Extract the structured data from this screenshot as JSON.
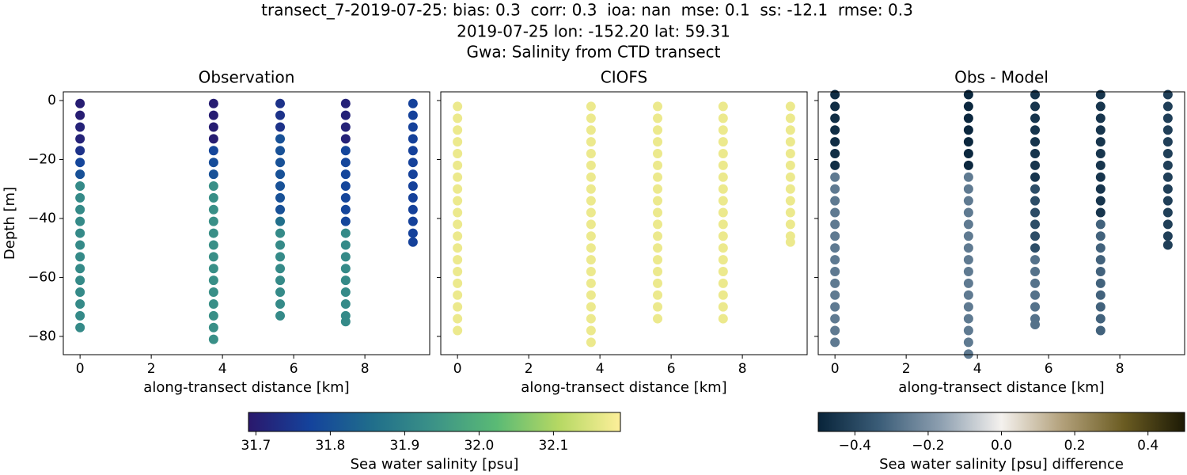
{
  "suptitle": [
    "transect_7-2019-07-25: bias: 0.3  corr: 0.3  ioa: nan  mse: 0.1  ss: -12.1  rmse: 0.3",
    "2019-07-25 lon: -152.20 lat: 59.31",
    "Gwa: Salinity from CTD transect"
  ],
  "chart_data": [
    {
      "type": "scatter",
      "title": "Observation",
      "xlabel": "along-transect distance [km]",
      "ylabel": "Depth [m]",
      "xlim": [
        -0.47,
        9.82
      ],
      "ylim": [
        -86.2,
        2.95
      ],
      "xticks": [
        0,
        2,
        4,
        6,
        8
      ],
      "yticks": [
        0,
        {
          "value": -20,
          "label": "−20"
        },
        {
          "value": -40,
          "label": "−40"
        },
        {
          "value": -60,
          "label": "−60"
        },
        {
          "value": -80,
          "label": "−80"
        }
      ],
      "yticklabels": true,
      "colorbar": {
        "label": "Sea water salinity [psu]",
        "lim": [
          31.69,
          32.19
        ],
        "ticks": [
          31.7,
          31.8,
          31.9,
          {
            "value": 32.0,
            "label": "32.0"
          },
          32.1
        ],
        "colormap": [
          "#2a186c",
          "#14439c",
          "#206e8b",
          "#3c9387",
          "#5aba75",
          "#b5d863",
          "#fdef9a"
        ]
      },
      "series": [
        {
          "x": 0,
          "values": [
            -1,
            -5,
            -9,
            -13,
            -17,
            -21,
            -25,
            -29,
            -33,
            -37,
            -41,
            -45,
            -49,
            -53,
            -57,
            -61,
            -65,
            -69,
            -73,
            -77
          ],
          "c": [
            31.7,
            31.7,
            31.71,
            31.71,
            31.74,
            31.78,
            31.8,
            31.92,
            31.92,
            31.92,
            31.92,
            31.92,
            31.92,
            31.92,
            31.92,
            31.92,
            31.92,
            31.92,
            31.92,
            31.92
          ]
        },
        {
          "x": 3.75,
          "values": [
            -1,
            -5,
            -9,
            -13,
            -17,
            -21,
            -25,
            -29,
            -33,
            -37,
            -41,
            -45,
            -49,
            -53,
            -57,
            -61,
            -65,
            -69,
            -73,
            -77,
            -81
          ],
          "c": [
            31.7,
            31.7,
            31.7,
            31.7,
            31.78,
            31.79,
            31.8,
            31.93,
            31.93,
            31.93,
            31.93,
            31.93,
            31.93,
            31.93,
            31.93,
            31.93,
            31.93,
            31.93,
            31.93,
            31.93,
            31.93
          ]
        },
        {
          "x": 5.62,
          "values": [
            -1,
            -5,
            -9,
            -13,
            -17,
            -21,
            -25,
            -29,
            -33,
            -37,
            -41,
            -45,
            -49,
            -53,
            -57,
            -61,
            -65,
            -69,
            -73
          ],
          "c": [
            31.74,
            31.74,
            31.74,
            31.8,
            31.8,
            31.8,
            31.8,
            31.8,
            31.8,
            31.8,
            31.86,
            31.92,
            31.92,
            31.92,
            31.92,
            31.92,
            31.92,
            31.92,
            31.92
          ]
        },
        {
          "x": 7.46,
          "values": [
            -1,
            -5,
            -9,
            -13,
            -17,
            -21,
            -25,
            -29,
            -33,
            -37,
            -41,
            -45,
            -49,
            -53,
            -57,
            -61,
            -65,
            -69,
            -73,
            -75
          ],
          "c": [
            31.71,
            31.71,
            31.71,
            31.71,
            31.78,
            31.78,
            31.78,
            31.78,
            31.78,
            31.78,
            31.78,
            31.92,
            31.92,
            31.92,
            31.92,
            31.92,
            31.92,
            31.92,
            31.92,
            31.92
          ]
        },
        {
          "x": 9.35,
          "values": [
            -1,
            -5,
            -9,
            -13,
            -17,
            -21,
            -25,
            -29,
            -33,
            -37,
            -41,
            -45,
            -48
          ],
          "c": [
            31.77,
            31.77,
            31.77,
            31.77,
            31.77,
            31.77,
            31.77,
            31.77,
            31.77,
            31.77,
            31.77,
            31.77,
            31.77
          ]
        }
      ]
    },
    {
      "type": "scatter",
      "title": "CIOFS",
      "xlabel": "along-transect distance [km]",
      "xlim": [
        -0.47,
        9.82
      ],
      "ylim": [
        -86.2,
        2.95
      ],
      "xticks": [
        0,
        2,
        4,
        6,
        8
      ],
      "yticks": [
        0,
        -20,
        -40,
        -60,
        -80
      ],
      "yticklabels": false,
      "series": [
        {
          "x": 0,
          "values": [
            -2,
            -6,
            -10,
            -14,
            -18,
            -22,
            -26,
            -30,
            -34,
            -38,
            -42,
            -46,
            -50,
            -54,
            -58,
            -62,
            -66,
            -70,
            -74,
            -78
          ],
          "c": [
            32.17,
            32.17,
            32.17,
            32.17,
            32.17,
            32.17,
            32.17,
            32.17,
            32.17,
            32.17,
            32.17,
            32.17,
            32.17,
            32.17,
            32.17,
            32.17,
            32.17,
            32.17,
            32.17,
            32.17
          ]
        },
        {
          "x": 3.75,
          "values": [
            -2,
            -6,
            -10,
            -14,
            -18,
            -22,
            -26,
            -30,
            -34,
            -38,
            -42,
            -46,
            -50,
            -54,
            -58,
            -62,
            -66,
            -70,
            -74,
            -78,
            -82
          ],
          "c": [
            32.17,
            32.17,
            32.17,
            32.17,
            32.17,
            32.17,
            32.17,
            32.17,
            32.17,
            32.17,
            32.17,
            32.17,
            32.17,
            32.17,
            32.17,
            32.17,
            32.17,
            32.17,
            32.17,
            32.17,
            32.17
          ]
        },
        {
          "x": 5.62,
          "values": [
            -2,
            -6,
            -10,
            -14,
            -18,
            -22,
            -26,
            -30,
            -34,
            -38,
            -42,
            -46,
            -50,
            -54,
            -58,
            -62,
            -66,
            -70,
            -74
          ],
          "c": [
            32.17,
            32.17,
            32.17,
            32.17,
            32.17,
            32.17,
            32.17,
            32.17,
            32.17,
            32.17,
            32.17,
            32.17,
            32.17,
            32.17,
            32.17,
            32.17,
            32.17,
            32.17,
            32.17
          ]
        },
        {
          "x": 7.46,
          "values": [
            -2,
            -6,
            -10,
            -14,
            -18,
            -22,
            -26,
            -30,
            -34,
            -38,
            -42,
            -46,
            -50,
            -54,
            -58,
            -62,
            -66,
            -70,
            -74
          ],
          "c": [
            32.17,
            32.17,
            32.17,
            32.17,
            32.17,
            32.17,
            32.17,
            32.17,
            32.17,
            32.17,
            32.17,
            32.17,
            32.17,
            32.17,
            32.17,
            32.17,
            32.17,
            32.17,
            32.17
          ]
        },
        {
          "x": 9.35,
          "values": [
            -2,
            -6,
            -10,
            -14,
            -18,
            -22,
            -26,
            -30,
            -34,
            -38,
            -42,
            -46,
            -48
          ],
          "c": [
            32.17,
            32.17,
            32.17,
            32.17,
            32.17,
            32.17,
            32.17,
            32.17,
            32.17,
            32.17,
            32.17,
            32.17,
            32.17
          ]
        }
      ]
    },
    {
      "type": "scatter",
      "title": "Obs - Model",
      "xlabel": "along-transect distance [km]",
      "xlim": [
        -0.47,
        9.82
      ],
      "ylim": [
        -86.2,
        2.95
      ],
      "xticks": [
        0,
        2,
        4,
        6,
        8
      ],
      "yticks": [
        0,
        -20,
        -40,
        -60,
        -80
      ],
      "yticklabels": false,
      "colorbar": {
        "label": "Sea water salinity [psu] difference",
        "lim": [
          -0.5,
          0.5
        ],
        "ticks": [
          {
            "value": -0.4,
            "label": "−0.4"
          },
          {
            "value": -0.2,
            "label": "−0.2"
          },
          {
            "value": 0,
            "label": "0.0"
          },
          0.2,
          0.4
        ],
        "colormap": [
          "#08243a",
          "#3b5d78",
          "#8d9fb0",
          "#f4f1ee",
          "#b2a07a",
          "#6b5c22",
          "#1c1a05"
        ]
      },
      "series": [
        {
          "x": 0,
          "values": [
            2,
            -2,
            -6,
            -10,
            -14,
            -18,
            -22,
            -26,
            -30,
            -34,
            -38,
            -42,
            -46,
            -50,
            -54,
            -58,
            -62,
            -66,
            -70,
            -74,
            -78,
            -82
          ],
          "c": [
            -0.47,
            -0.47,
            -0.47,
            -0.47,
            -0.47,
            -0.47,
            -0.47,
            -0.26,
            -0.26,
            -0.26,
            -0.26,
            -0.26,
            -0.26,
            -0.26,
            -0.26,
            -0.26,
            -0.26,
            -0.26,
            -0.26,
            -0.26,
            -0.26,
            -0.26
          ]
        },
        {
          "x": 3.75,
          "values": [
            2,
            -2,
            -6,
            -10,
            -14,
            -18,
            -22,
            -26,
            -30,
            -34,
            -38,
            -42,
            -46,
            -50,
            -54,
            -58,
            -62,
            -66,
            -70,
            -74,
            -78,
            -82,
            -86
          ],
          "c": [
            -0.49,
            -0.49,
            -0.49,
            -0.49,
            -0.49,
            -0.49,
            -0.49,
            -0.26,
            -0.26,
            -0.26,
            -0.26,
            -0.26,
            -0.26,
            -0.26,
            -0.26,
            -0.26,
            -0.26,
            -0.26,
            -0.26,
            -0.26,
            -0.26,
            -0.26,
            -0.26
          ]
        },
        {
          "x": 5.62,
          "values": [
            2,
            -2,
            -6,
            -10,
            -14,
            -18,
            -22,
            -26,
            -30,
            -34,
            -38,
            -42,
            -46,
            -50,
            -54,
            -58,
            -62,
            -66,
            -70,
            -74,
            -76
          ],
          "c": [
            -0.45,
            -0.45,
            -0.45,
            -0.45,
            -0.45,
            -0.45,
            -0.45,
            -0.45,
            -0.38,
            -0.38,
            -0.38,
            -0.38,
            -0.38,
            -0.38,
            -0.28,
            -0.28,
            -0.28,
            -0.28,
            -0.28,
            -0.28,
            -0.28
          ]
        },
        {
          "x": 7.46,
          "values": [
            2,
            -2,
            -6,
            -10,
            -14,
            -18,
            -22,
            -26,
            -30,
            -34,
            -38,
            -42,
            -46,
            -50,
            -54,
            -58,
            -62,
            -66,
            -70,
            -74,
            -78
          ],
          "c": [
            -0.45,
            -0.45,
            -0.45,
            -0.45,
            -0.45,
            -0.45,
            -0.45,
            -0.45,
            -0.45,
            -0.45,
            -0.45,
            -0.32,
            -0.32,
            -0.32,
            -0.32,
            -0.32,
            -0.32,
            -0.32,
            -0.32,
            -0.32,
            -0.32
          ]
        },
        {
          "x": 9.35,
          "values": [
            2,
            -2,
            -6,
            -10,
            -14,
            -18,
            -22,
            -26,
            -30,
            -34,
            -38,
            -42,
            -46,
            -49
          ],
          "c": [
            -0.42,
            -0.42,
            -0.42,
            -0.42,
            -0.42,
            -0.42,
            -0.42,
            -0.42,
            -0.42,
            -0.42,
            -0.42,
            -0.42,
            -0.42,
            -0.42
          ]
        }
      ]
    }
  ]
}
